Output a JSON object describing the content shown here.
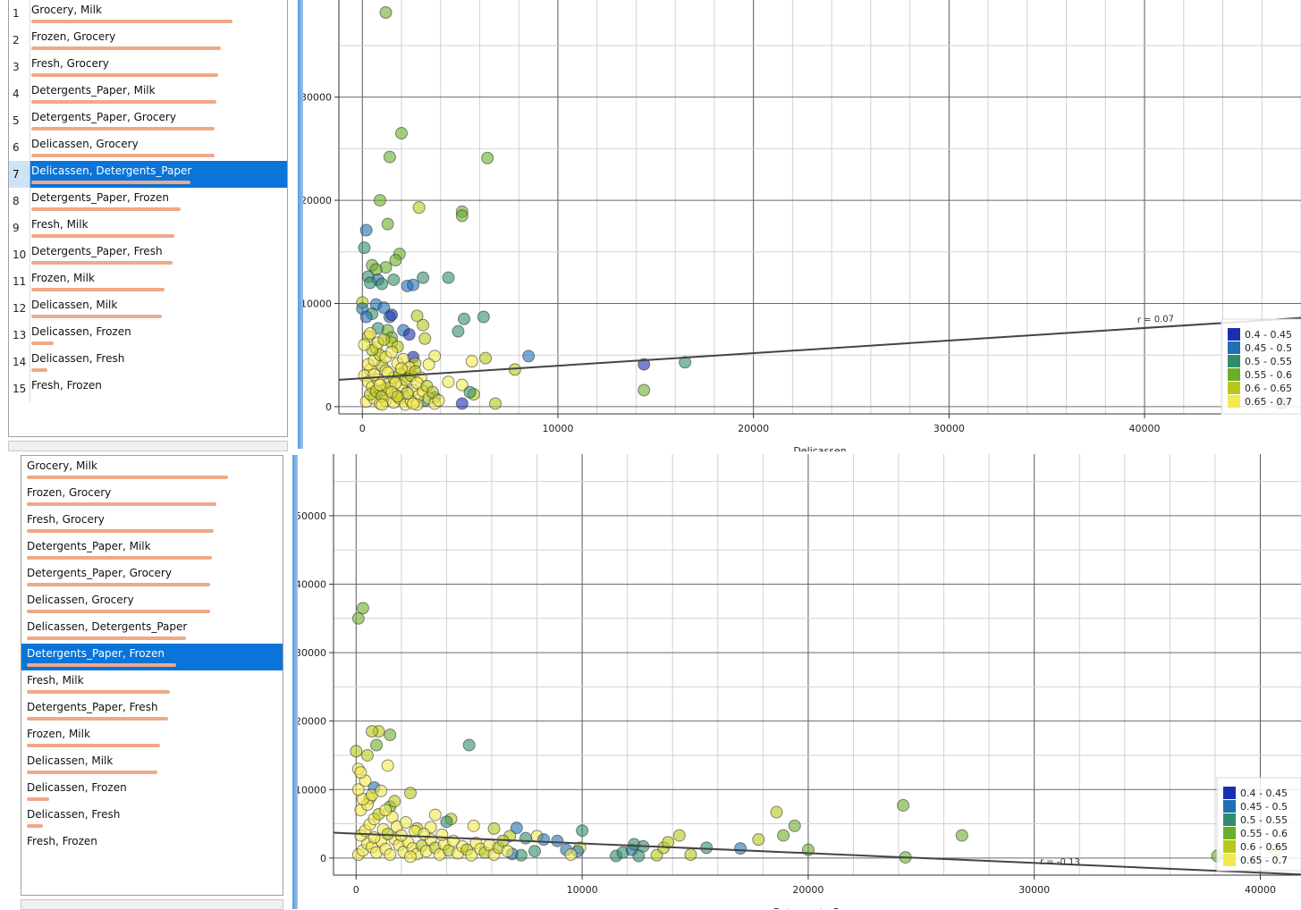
{
  "items": [
    "Grocery, Milk",
    "Frozen, Grocery",
    "Fresh, Grocery",
    "Detergents_Paper, Milk",
    "Detergents_Paper, Grocery",
    "Delicassen, Grocery",
    "Delicassen, Detergents_Paper",
    "Detergents_Paper, Frozen",
    "Fresh, Milk",
    "Detergents_Paper, Fresh",
    "Frozen, Milk",
    "Delicassen, Milk",
    "Delicassen, Frozen",
    "Delicassen, Fresh",
    "Fresh, Frozen"
  ],
  "item_scores": [
    1.0,
    0.94,
    0.93,
    0.92,
    0.91,
    0.91,
    0.79,
    0.74,
    0.71,
    0.7,
    0.66,
    0.65,
    0.11,
    0.08,
    0.0
  ],
  "row_numbers": [
    "1",
    "2",
    "3",
    "4",
    "5",
    "6",
    "7",
    "8",
    "9",
    "10",
    "11",
    "12",
    "13",
    "14",
    "15"
  ],
  "top_selected_index": 6,
  "bottom_selected_index": 7,
  "legend": {
    "items": [
      "0.4 - 0.45",
      "0.45 - 0.5",
      "0.5 - 0.55",
      "0.55 - 0.6",
      "0.6 - 0.65",
      "0.65 - 0.7"
    ],
    "colors": [
      "#1a2fb0",
      "#1f6fb5",
      "#2e8e6a",
      "#6aae2a",
      "#b8c818",
      "#f2ea50"
    ]
  },
  "chart_data": [
    {
      "type": "scatter",
      "xlabel": "Delicassen",
      "ylabel": "",
      "xlim": [
        -1200,
        48000
      ],
      "ylim": [
        -700,
        39500
      ],
      "xticks": [
        0,
        10000,
        20000,
        30000,
        40000
      ],
      "yticks": [
        0,
        10000,
        20000,
        30000
      ],
      "grid": true,
      "regression": {
        "r_label": "r = 0.07",
        "x1": -1200,
        "y1": 2600,
        "x2": 48000,
        "y2": 8600
      },
      "legend_position": "bottom-right",
      "points": [
        [
          1200,
          38200,
          3
        ],
        [
          2000,
          26500,
          3
        ],
        [
          1400,
          24200,
          3
        ],
        [
          6400,
          24100,
          3
        ],
        [
          900,
          20000,
          3
        ],
        [
          2900,
          19300,
          4
        ],
        [
          5100,
          18900,
          3
        ],
        [
          5100,
          18500,
          3
        ],
        [
          200,
          17100,
          1
        ],
        [
          1300,
          17700,
          3
        ],
        [
          100,
          15400,
          2
        ],
        [
          1900,
          14800,
          3
        ],
        [
          1700,
          14200,
          3
        ],
        [
          500,
          13700,
          3
        ],
        [
          1200,
          13500,
          3
        ],
        [
          700,
          13300,
          3
        ],
        [
          300,
          12600,
          2
        ],
        [
          800,
          12300,
          1
        ],
        [
          3100,
          12500,
          2
        ],
        [
          4400,
          12500,
          2
        ],
        [
          2300,
          11700,
          1
        ],
        [
          1600,
          12300,
          2
        ],
        [
          400,
          12000,
          2
        ],
        [
          2600,
          11800,
          1
        ],
        [
          1000,
          11900,
          2
        ],
        [
          0,
          10100,
          4
        ],
        [
          0,
          9500,
          1
        ],
        [
          700,
          9900,
          1
        ],
        [
          1100,
          9600,
          1
        ],
        [
          500,
          9000,
          2
        ],
        [
          1400,
          8700,
          1
        ],
        [
          1500,
          8900,
          0
        ],
        [
          200,
          8700,
          1
        ],
        [
          2800,
          8800,
          4
        ],
        [
          5200,
          8500,
          2
        ],
        [
          6200,
          8700,
          2
        ],
        [
          3100,
          7900,
          4
        ],
        [
          1300,
          7400,
          3
        ],
        [
          800,
          7600,
          2
        ],
        [
          300,
          6800,
          4
        ],
        [
          2100,
          7400,
          1
        ],
        [
          1500,
          6700,
          3
        ],
        [
          2400,
          7000,
          0
        ],
        [
          3200,
          6600,
          4
        ],
        [
          1500,
          6200,
          4
        ],
        [
          700,
          5700,
          5
        ],
        [
          1800,
          5800,
          4
        ],
        [
          4900,
          7300,
          2
        ],
        [
          8500,
          4900,
          1
        ],
        [
          2600,
          4800,
          0
        ],
        [
          3700,
          4900,
          5
        ],
        [
          6300,
          4700,
          4
        ],
        [
          5600,
          4400,
          5
        ],
        [
          7800,
          3600,
          4
        ],
        [
          14400,
          4100,
          0
        ],
        [
          16500,
          4300,
          2
        ],
        [
          3400,
          4100,
          5
        ],
        [
          2700,
          4200,
          4
        ],
        [
          1000,
          4000,
          4
        ],
        [
          400,
          3600,
          5
        ],
        [
          1200,
          3500,
          5
        ],
        [
          2200,
          3400,
          4
        ],
        [
          5100,
          2100,
          5
        ],
        [
          4400,
          2400,
          5
        ],
        [
          5700,
          1200,
          4
        ],
        [
          5500,
          1400,
          2
        ],
        [
          3700,
          900,
          1
        ],
        [
          14400,
          1600,
          3
        ],
        [
          6800,
          300,
          4
        ],
        [
          5100,
          300,
          0
        ],
        [
          3200,
          600,
          2
        ],
        [
          2300,
          1400,
          1
        ],
        [
          47000,
          300,
          2
        ],
        [
          100,
          3000,
          5
        ],
        [
          300,
          2400,
          5
        ],
        [
          500,
          1900,
          5
        ],
        [
          800,
          2600,
          5
        ],
        [
          1100,
          1600,
          5
        ],
        [
          1400,
          2300,
          5
        ],
        [
          1700,
          1200,
          5
        ],
        [
          2000,
          2000,
          5
        ],
        [
          2300,
          900,
          5
        ],
        [
          2600,
          1600,
          5
        ],
        [
          2900,
          1100,
          5
        ],
        [
          200,
          500,
          5
        ],
        [
          600,
          800,
          5
        ],
        [
          900,
          300,
          5
        ],
        [
          1200,
          600,
          5
        ],
        [
          1600,
          400,
          5
        ],
        [
          1900,
          800,
          5
        ],
        [
          2200,
          200,
          5
        ],
        [
          2500,
          500,
          5
        ],
        [
          2800,
          200,
          5
        ],
        [
          3100,
          1500,
          5
        ],
        [
          3400,
          800,
          5
        ],
        [
          3700,
          300,
          5
        ],
        [
          400,
          1200,
          4
        ],
        [
          700,
          1500,
          4
        ],
        [
          1000,
          1000,
          4
        ],
        [
          1300,
          1800,
          4
        ],
        [
          1600,
          2800,
          4
        ],
        [
          1900,
          3200,
          4
        ],
        [
          2200,
          2600,
          4
        ],
        [
          2500,
          3000,
          4
        ],
        [
          300,
          4100,
          5
        ],
        [
          600,
          4500,
          5
        ],
        [
          900,
          5000,
          4
        ],
        [
          1200,
          4800,
          5
        ],
        [
          1500,
          5300,
          5
        ],
        [
          1800,
          4200,
          5
        ],
        [
          2100,
          4600,
          5
        ],
        [
          2400,
          3800,
          5
        ],
        [
          2700,
          3400,
          4
        ],
        [
          3000,
          2800,
          5
        ],
        [
          500,
          5500,
          4
        ],
        [
          800,
          6200,
          5
        ],
        [
          1100,
          6500,
          4
        ],
        [
          100,
          6000,
          5
        ],
        [
          400,
          7100,
          5
        ],
        [
          1300,
          3300,
          5
        ],
        [
          2000,
          3700,
          5
        ],
        [
          900,
          2100,
          5
        ],
        [
          1700,
          2300,
          5
        ],
        [
          2300,
          1300,
          5
        ],
        [
          2800,
          2300,
          5
        ],
        [
          3300,
          2000,
          4
        ],
        [
          3600,
          1400,
          4
        ],
        [
          1000,
          200,
          5
        ],
        [
          1500,
          1400,
          5
        ],
        [
          600,
          3100,
          5
        ],
        [
          1800,
          1000,
          4
        ],
        [
          2600,
          300,
          5
        ],
        [
          3900,
          600,
          5
        ]
      ]
    },
    {
      "type": "scatter",
      "xlabel": "Detergents_Paper",
      "ylabel": "",
      "xlim": [
        -1000,
        41800
      ],
      "ylim": [
        -2500,
        59000
      ],
      "xticks": [
        0,
        10000,
        20000,
        30000,
        40000
      ],
      "yticks": [
        0,
        10000,
        20000,
        30000,
        40000,
        50000
      ],
      "grid": true,
      "regression": {
        "r_label": "r = -0.13",
        "x1": -1000,
        "y1": 3700,
        "x2": 41800,
        "y2": -2400
      },
      "legend_position": "bottom-right",
      "points": [
        [
          300,
          36500,
          3
        ],
        [
          100,
          35000,
          3
        ],
        [
          1000,
          18500,
          4
        ],
        [
          1500,
          18000,
          3
        ],
        [
          700,
          18500,
          4
        ],
        [
          900,
          16500,
          3
        ],
        [
          500,
          15000,
          4
        ],
        [
          0,
          15600,
          4
        ],
        [
          100,
          13000,
          5
        ],
        [
          1400,
          13500,
          5
        ],
        [
          5000,
          16500,
          2
        ],
        [
          2400,
          9500,
          4
        ],
        [
          800,
          10300,
          1
        ],
        [
          600,
          8700,
          4
        ],
        [
          1500,
          7500,
          3
        ],
        [
          3500,
          6300,
          5
        ],
        [
          4200,
          5700,
          4
        ],
        [
          4000,
          5300,
          2
        ],
        [
          5200,
          4700,
          5
        ],
        [
          3300,
          4500,
          5
        ],
        [
          2700,
          4300,
          4
        ],
        [
          6100,
          4300,
          4
        ],
        [
          7100,
          4400,
          1
        ],
        [
          8000,
          3200,
          5
        ],
        [
          6800,
          3200,
          4
        ],
        [
          7500,
          2900,
          2
        ],
        [
          8900,
          2500,
          1
        ],
        [
          8300,
          2700,
          1
        ],
        [
          10000,
          4000,
          2
        ],
        [
          9900,
          1500,
          5
        ],
        [
          9300,
          1200,
          1
        ],
        [
          9800,
          1000,
          1
        ],
        [
          7900,
          1000,
          2
        ],
        [
          7300,
          400,
          2
        ],
        [
          6900,
          600,
          1
        ],
        [
          9500,
          500,
          5
        ],
        [
          11500,
          300,
          2
        ],
        [
          11800,
          800,
          2
        ],
        [
          12200,
          1200,
          1
        ],
        [
          12300,
          2000,
          2
        ],
        [
          12700,
          1700,
          2
        ],
        [
          12500,
          300,
          2
        ],
        [
          13300,
          400,
          4
        ],
        [
          13600,
          1500,
          4
        ],
        [
          13800,
          2300,
          4
        ],
        [
          14300,
          3300,
          4
        ],
        [
          14800,
          500,
          4
        ],
        [
          15500,
          1500,
          2
        ],
        [
          17000,
          1400,
          1
        ],
        [
          17800,
          2700,
          4
        ],
        [
          18600,
          6700,
          4
        ],
        [
          18900,
          3300,
          3
        ],
        [
          19400,
          4700,
          3
        ],
        [
          20000,
          1200,
          3
        ],
        [
          24200,
          7700,
          3
        ],
        [
          24300,
          100,
          3
        ],
        [
          26800,
          3300,
          3
        ],
        [
          38100,
          300,
          3
        ],
        [
          40700,
          1200,
          4
        ],
        [
          100,
          500,
          5
        ],
        [
          300,
          1100,
          5
        ],
        [
          500,
          2100,
          5
        ],
        [
          700,
          1600,
          5
        ],
        [
          900,
          800,
          5
        ],
        [
          1100,
          2500,
          5
        ],
        [
          1300,
          1300,
          5
        ],
        [
          1500,
          500,
          5
        ],
        [
          1700,
          2800,
          5
        ],
        [
          1900,
          1900,
          5
        ],
        [
          2100,
          900,
          5
        ],
        [
          2300,
          2300,
          5
        ],
        [
          2500,
          1400,
          5
        ],
        [
          2700,
          600,
          5
        ],
        [
          2900,
          1800,
          4
        ],
        [
          3100,
          1000,
          5
        ],
        [
          3300,
          2700,
          5
        ],
        [
          3500,
          1500,
          4
        ],
        [
          3700,
          500,
          5
        ],
        [
          3900,
          2000,
          5
        ],
        [
          4100,
          1100,
          4
        ],
        [
          4300,
          2500,
          5
        ],
        [
          4500,
          700,
          5
        ],
        [
          4700,
          1700,
          5
        ],
        [
          4900,
          1200,
          4
        ],
        [
          5100,
          400,
          5
        ],
        [
          5300,
          2200,
          5
        ],
        [
          5500,
          1300,
          5
        ],
        [
          5700,
          800,
          4
        ],
        [
          5900,
          1900,
          5
        ],
        [
          6100,
          500,
          5
        ],
        [
          6300,
          1500,
          4
        ],
        [
          6500,
          2500,
          4
        ],
        [
          6700,
          1000,
          5
        ],
        [
          200,
          3300,
          5
        ],
        [
          400,
          4000,
          5
        ],
        [
          600,
          4900,
          5
        ],
        [
          800,
          5700,
          5
        ],
        [
          1000,
          6400,
          4
        ],
        [
          200,
          7000,
          5
        ],
        [
          500,
          7800,
          5
        ],
        [
          300,
          8600,
          5
        ],
        [
          700,
          9200,
          5
        ],
        [
          1200,
          4200,
          5
        ],
        [
          1400,
          3500,
          4
        ],
        [
          1600,
          6000,
          5
        ],
        [
          1800,
          4600,
          5
        ],
        [
          2000,
          3300,
          5
        ],
        [
          2200,
          5200,
          5
        ],
        [
          2600,
          3900,
          5
        ],
        [
          3000,
          3500,
          5
        ],
        [
          100,
          10000,
          5
        ],
        [
          400,
          11300,
          5
        ],
        [
          200,
          12500,
          5
        ],
        [
          1100,
          9800,
          5
        ],
        [
          1300,
          7000,
          5
        ],
        [
          1700,
          8300,
          4
        ],
        [
          800,
          3000,
          5
        ],
        [
          2400,
          200,
          5
        ],
        [
          3800,
          3400,
          5
        ]
      ]
    }
  ]
}
